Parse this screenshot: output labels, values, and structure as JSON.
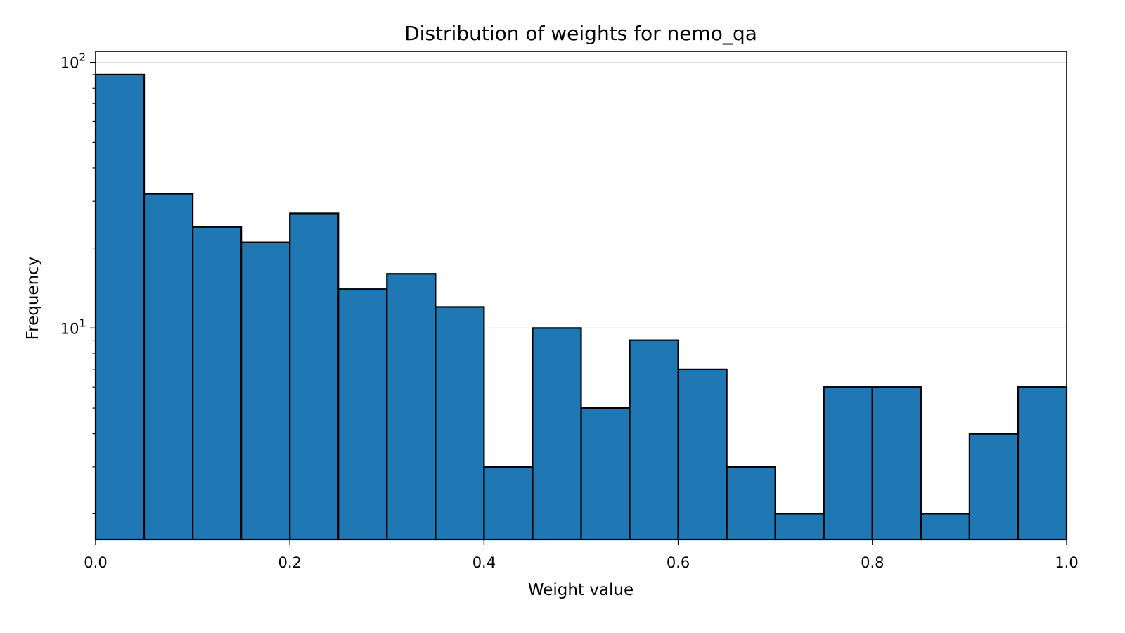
{
  "chart_data": {
    "type": "bar",
    "title": "Distribution of weights for nemo_qa",
    "xlabel": "Weight value",
    "ylabel": "Frequency",
    "x_scale": "linear",
    "y_scale": "log",
    "xlim": [
      0.0,
      1.0
    ],
    "ylim": [
      1.6,
      110
    ],
    "x_ticks": [
      0.0,
      0.2,
      0.4,
      0.6,
      0.8,
      1.0
    ],
    "x_tick_labels": [
      "0.0",
      "0.2",
      "0.4",
      "0.6",
      "0.8",
      "1.0"
    ],
    "y_major_ticks": [
      {
        "value": 10,
        "base": "10",
        "exp": "1"
      },
      {
        "value": 100,
        "base": "10",
        "exp": "2"
      }
    ],
    "grid": "horizontal-major",
    "bin_edges": [
      0.0,
      0.05,
      0.1,
      0.15,
      0.2,
      0.25,
      0.3,
      0.35,
      0.4,
      0.45,
      0.5,
      0.55,
      0.6,
      0.65,
      0.7,
      0.75,
      0.8,
      0.85,
      0.9,
      0.95,
      1.0
    ],
    "values": [
      90,
      32,
      24,
      21,
      27,
      14,
      16,
      12,
      3,
      10,
      5,
      9,
      7,
      3,
      2,
      6,
      6,
      2,
      4,
      6
    ],
    "bar_color": "#1f77b4",
    "edge_color": "#000000"
  }
}
